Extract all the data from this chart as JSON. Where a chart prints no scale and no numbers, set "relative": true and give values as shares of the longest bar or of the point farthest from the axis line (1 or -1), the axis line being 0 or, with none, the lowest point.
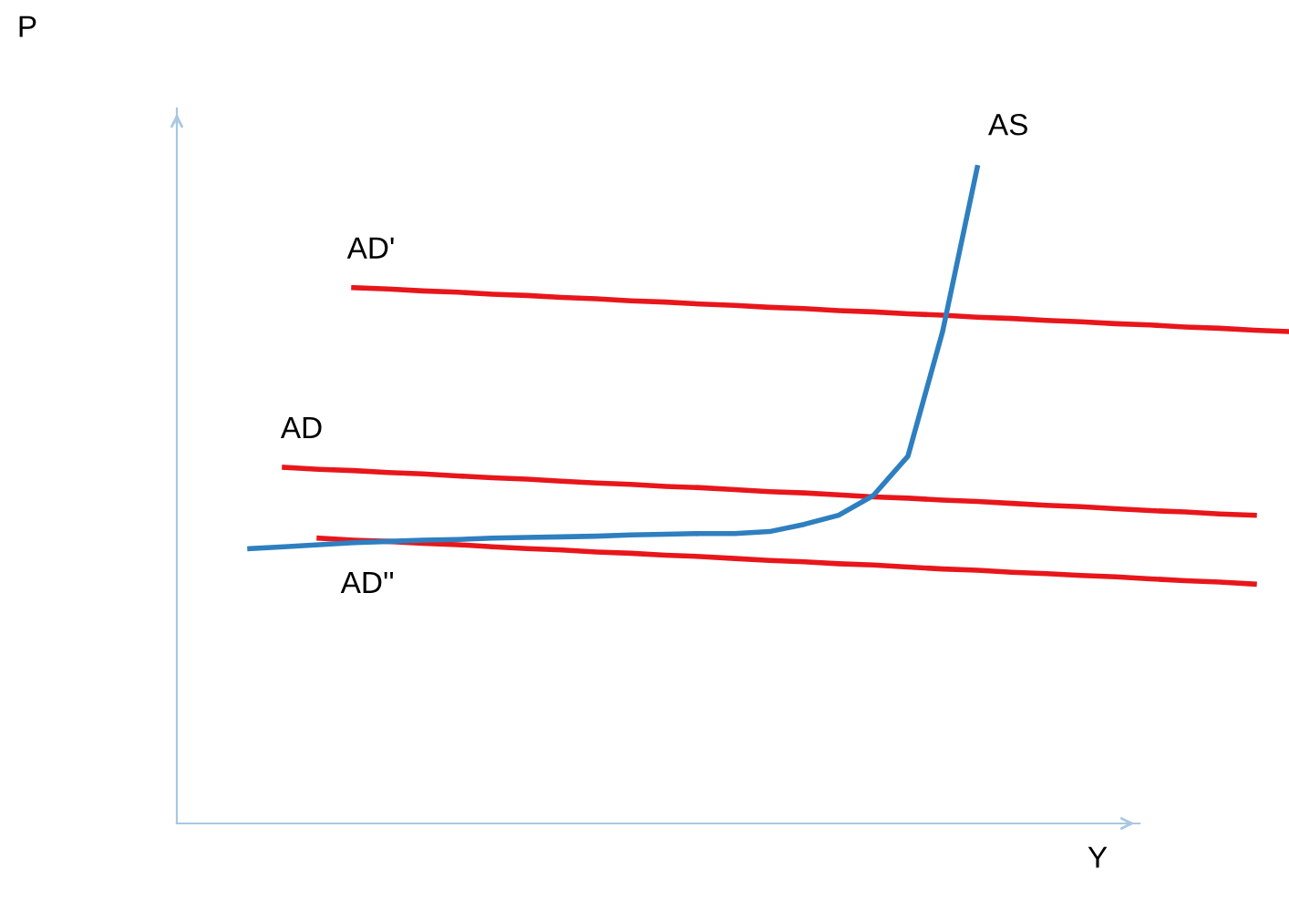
{
  "chart_data": {
    "type": "line",
    "relative": true,
    "xlabel": "Y",
    "annotations": [
      "P"
    ],
    "marker": "none",
    "line_style": "solid",
    "categories": [
      null,
      null,
      null,
      null,
      null,
      null,
      null,
      null,
      null,
      null,
      null,
      null,
      null,
      null,
      null,
      null,
      null,
      null,
      null,
      null,
      null,
      null,
      null,
      null,
      null,
      null,
      null,
      null,
      null,
      null,
      null
    ],
    "series": [
      {
        "name": "AD'",
        "color": "#e8161b",
        "values": [
          null,
          null,
          null,
          0.817,
          0.815,
          0.812,
          0.81,
          0.807,
          0.805,
          0.802,
          0.8,
          0.797,
          0.795,
          0.792,
          0.79,
          0.787,
          0.785,
          0.782,
          0.78,
          0.777,
          0.775,
          0.772,
          0.77,
          0.767,
          0.765,
          0.762,
          0.76,
          0.757,
          0.755,
          0.752,
          0.75
        ]
      },
      {
        "name": "AD",
        "color": "#e8161b",
        "values": [
          null,
          0.543,
          0.54,
          0.538,
          0.535,
          0.533,
          0.53,
          0.527,
          0.525,
          0.522,
          0.519,
          0.517,
          0.514,
          0.512,
          0.509,
          0.506,
          0.504,
          0.501,
          0.498,
          0.496,
          0.493,
          0.491,
          0.488,
          0.485,
          0.483,
          0.48,
          0.477,
          0.475,
          0.472,
          0.47,
          null
        ]
      },
      {
        "name": "AD''",
        "color": "#e8161b",
        "values": [
          null,
          null,
          0.435,
          0.432,
          0.43,
          0.427,
          0.425,
          0.422,
          0.419,
          0.417,
          0.414,
          0.412,
          0.409,
          0.407,
          0.404,
          0.401,
          0.399,
          0.396,
          0.394,
          0.391,
          0.388,
          0.386,
          0.383,
          0.381,
          0.378,
          0.376,
          0.373,
          0.37,
          0.368,
          0.365,
          null
        ]
      },
      {
        "name": "AS",
        "color": "#2e7fc0",
        "values": [
          0.419,
          0.422,
          0.425,
          0.428,
          0.43,
          0.432,
          0.433,
          0.435,
          0.436,
          0.437,
          0.438,
          0.44,
          0.441,
          0.442,
          0.442,
          0.445,
          0.456,
          0.47,
          0.5,
          0.56,
          0.75,
          1.0,
          null,
          null,
          null,
          null,
          null,
          null,
          null,
          null,
          null
        ]
      }
    ]
  }
}
